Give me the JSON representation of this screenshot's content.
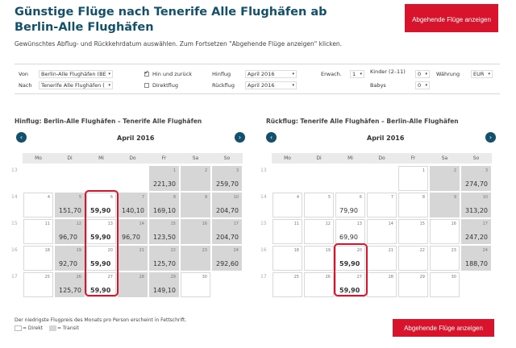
{
  "header": {
    "title": "Günstige Flüge nach Tenerife Alle Flughäfen ab Berlin-Alle Flughäfen",
    "subtitle": "Gewünschtes Abflug- und Rückkehrdatum auswählen. Zum Fortsetzen \"Abgehende Flüge anzeigen\" klicken.",
    "top_button": "Abgehende Flüge anzeigen"
  },
  "form": {
    "von_label": "Von",
    "von_value": "Berlin-Alle Flughäfen (BE",
    "nach_label": "Nach",
    "nach_value": "Tenerife Alle Flughäfen (",
    "hin_zurueck_label": "Hin und zurück",
    "direktflug_label": "Direktflug",
    "hinflug_label": "Hinflug",
    "hinflug_value": "April 2016",
    "rueckflug_label": "Rückflug",
    "rueckflug_value": "April 2016",
    "erwach_label": "Erwach.",
    "erwach_value": "1",
    "kinder_label": "Kinder (2–11)",
    "kinder_value": "0",
    "babys_label": "Babys",
    "babys_value": "0",
    "waehrung_label": "Währung",
    "waehrung_value": "EUR"
  },
  "weekdays": [
    "Mo",
    "Di",
    "Mi",
    "Do",
    "Fr",
    "Sa",
    "So"
  ],
  "outbound": {
    "title": "Hinflug:  Berlin-Alle Flughäfen – Tenerife Alle Flughäfen",
    "month": "April 2016",
    "weeks": [
      "13",
      "14",
      "15",
      "16",
      "17"
    ],
    "rows": [
      [
        null,
        null,
        null,
        null,
        {
          "d": "1",
          "p": "221,30",
          "t": 1
        },
        {
          "d": "2",
          "p": "",
          "t": 1
        },
        {
          "d": "3",
          "p": "259,70",
          "t": 1
        }
      ],
      [
        {
          "d": "4",
          "p": "",
          "t": 0
        },
        {
          "d": "5",
          "p": "151,70",
          "t": 1
        },
        {
          "d": "6",
          "p": "59,90",
          "t": 0,
          "b": 1
        },
        {
          "d": "7",
          "p": "140,10",
          "t": 1
        },
        {
          "d": "8",
          "p": "169,10",
          "t": 1
        },
        {
          "d": "9",
          "p": "",
          "t": 1
        },
        {
          "d": "10",
          "p": "204,70",
          "t": 1
        }
      ],
      [
        {
          "d": "11",
          "p": "",
          "t": 0
        },
        {
          "d": "12",
          "p": "96,70",
          "t": 1
        },
        {
          "d": "13",
          "p": "59,90",
          "t": 0,
          "b": 1
        },
        {
          "d": "14",
          "p": "96,70",
          "t": 1
        },
        {
          "d": "15",
          "p": "123,50",
          "t": 1
        },
        {
          "d": "16",
          "p": "",
          "t": 1
        },
        {
          "d": "17",
          "p": "204,70",
          "t": 1
        }
      ],
      [
        {
          "d": "18",
          "p": "",
          "t": 0
        },
        {
          "d": "19",
          "p": "92,70",
          "t": 1
        },
        {
          "d": "20",
          "p": "59,90",
          "t": 0,
          "b": 1
        },
        {
          "d": "21",
          "p": "",
          "t": 1
        },
        {
          "d": "22",
          "p": "125,70",
          "t": 1
        },
        {
          "d": "23",
          "p": "",
          "t": 1
        },
        {
          "d": "24",
          "p": "292,60",
          "t": 1
        }
      ],
      [
        {
          "d": "25",
          "p": "",
          "t": 0
        },
        {
          "d": "26",
          "p": "125,70",
          "t": 1
        },
        {
          "d": "27",
          "p": "59,90",
          "t": 0,
          "b": 1
        },
        {
          "d": "28",
          "p": "",
          "t": 1
        },
        {
          "d": "29",
          "p": "149,10",
          "t": 1
        },
        {
          "d": "30",
          "p": "",
          "t": 0
        },
        null
      ]
    ]
  },
  "return": {
    "title": "Rückflug:  Tenerife Alle Flughäfen – Berlin-Alle Flughäfen",
    "month": "April 2016",
    "weeks": [
      "13",
      "14",
      "15",
      "16",
      "17"
    ],
    "rows": [
      [
        null,
        null,
        null,
        null,
        {
          "d": "1",
          "p": "",
          "t": 0
        },
        {
          "d": "2",
          "p": "",
          "t": 1
        },
        {
          "d": "3",
          "p": "274,70",
          "t": 1
        }
      ],
      [
        {
          "d": "4",
          "p": "",
          "t": 0
        },
        {
          "d": "5",
          "p": "",
          "t": 0
        },
        {
          "d": "6",
          "p": "79,90",
          "t": 0
        },
        {
          "d": "7",
          "p": "",
          "t": 0
        },
        {
          "d": "8",
          "p": "",
          "t": 0
        },
        {
          "d": "9",
          "p": "",
          "t": 1
        },
        {
          "d": "10",
          "p": "313,20",
          "t": 1
        }
      ],
      [
        {
          "d": "11",
          "p": "",
          "t": 0
        },
        {
          "d": "12",
          "p": "",
          "t": 0
        },
        {
          "d": "13",
          "p": "69,90",
          "t": 0
        },
        {
          "d": "14",
          "p": "",
          "t": 0
        },
        {
          "d": "15",
          "p": "",
          "t": 0
        },
        {
          "d": "16",
          "p": "",
          "t": 0
        },
        {
          "d": "17",
          "p": "247,20",
          "t": 1
        }
      ],
      [
        {
          "d": "18",
          "p": "",
          "t": 0
        },
        {
          "d": "19",
          "p": "",
          "t": 0
        },
        {
          "d": "20",
          "p": "59,90",
          "t": 0,
          "b": 1
        },
        {
          "d": "21",
          "p": "",
          "t": 0
        },
        {
          "d": "22",
          "p": "",
          "t": 0
        },
        {
          "d": "23",
          "p": "",
          "t": 0
        },
        {
          "d": "24",
          "p": "188,70",
          "t": 1
        }
      ],
      [
        {
          "d": "25",
          "p": "",
          "t": 0
        },
        {
          "d": "26",
          "p": "",
          "t": 0
        },
        {
          "d": "27",
          "p": "59,90",
          "t": 0,
          "b": 1
        },
        {
          "d": "28",
          "p": "",
          "t": 0
        },
        {
          "d": "29",
          "p": "",
          "t": 0
        },
        {
          "d": "30",
          "p": "",
          "t": 0
        },
        null
      ]
    ]
  },
  "legend": {
    "note": "Der niedrigste Flugpreis des Monats pro Person erscheint in Fettschrift.",
    "direkt": "= Direkt",
    "transit": "= Transit"
  },
  "bottom_button": "Abgehende Flüge anzeigen",
  "colors": {
    "brand": "#12506b",
    "accent": "#d7142b",
    "transit": "#d6d6d6"
  }
}
